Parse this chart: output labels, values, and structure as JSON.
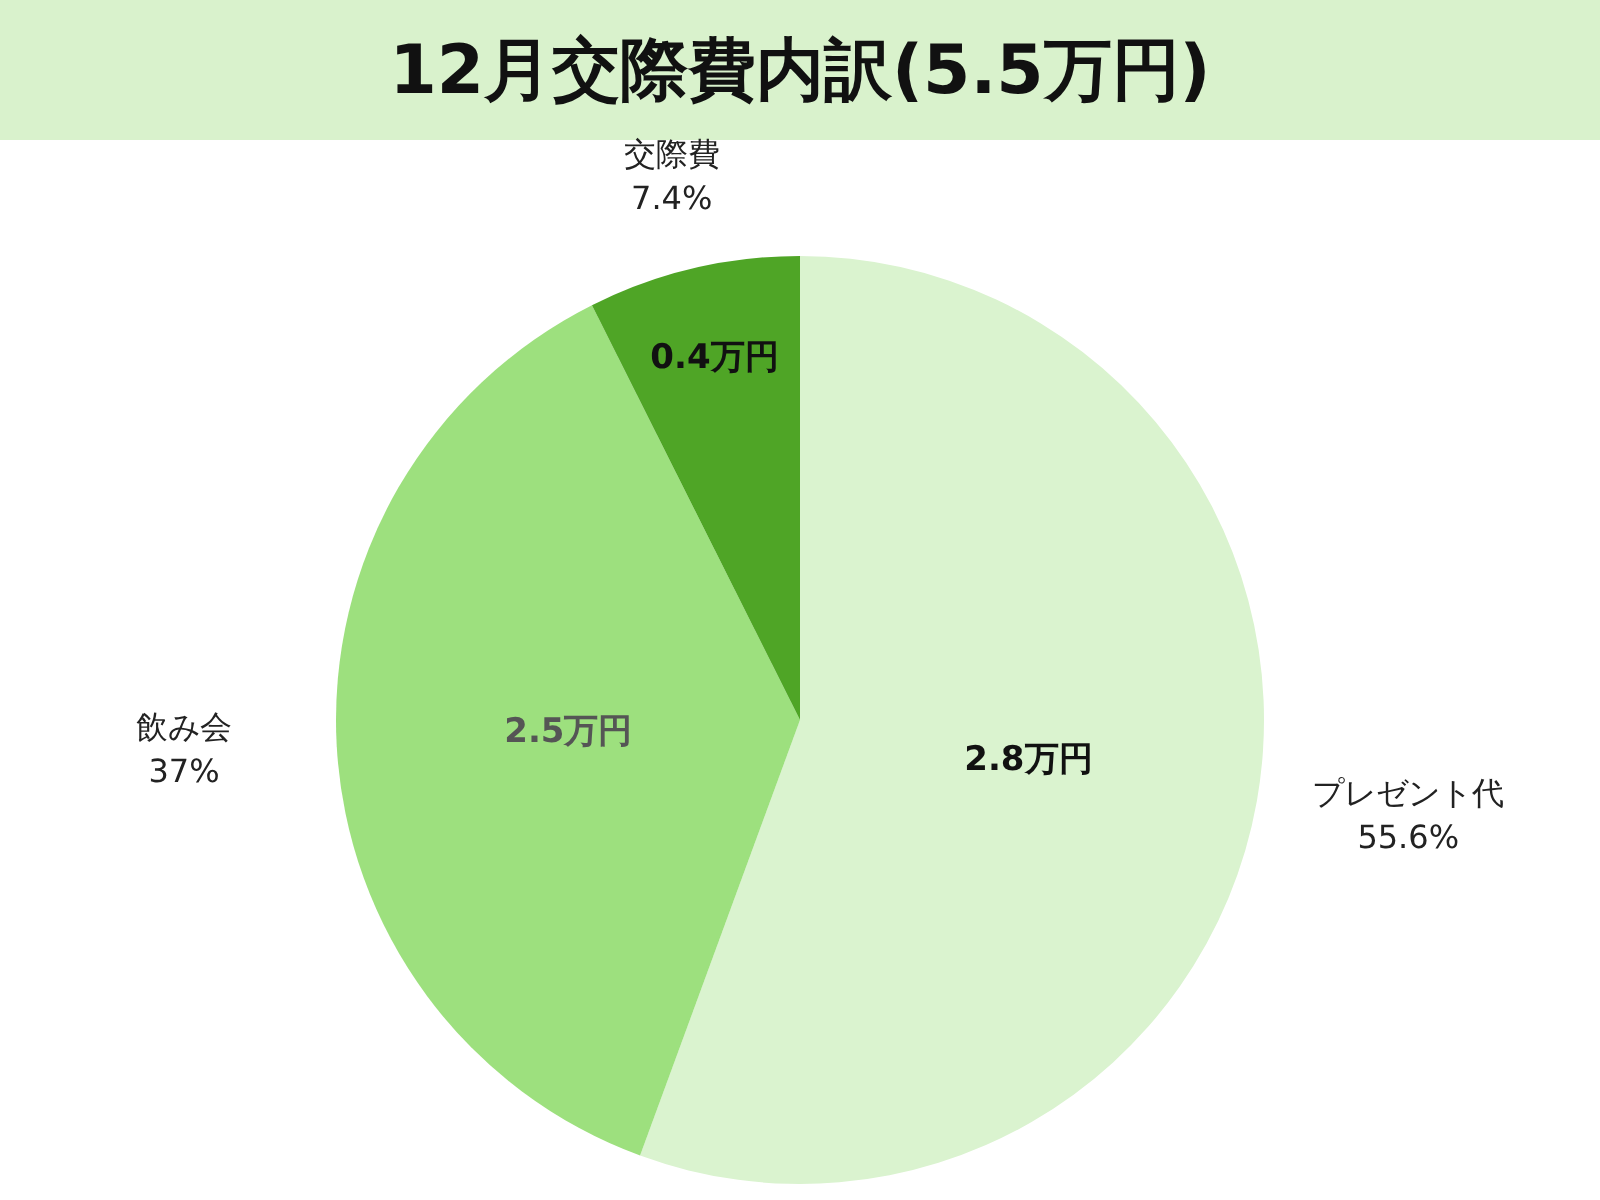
{
  "chart_data": {
    "type": "pie",
    "title": "12月交際費内訳(5.5万円)",
    "categories": [
      "プレゼント代",
      "飲み会",
      "交際費"
    ],
    "values": [
      55.6,
      37,
      7.4
    ],
    "colors": [
      "#daf3cf",
      "#9de07e",
      "#4fa526"
    ],
    "value_labels": [
      "55.6%",
      "37%",
      "7.4%"
    ],
    "annotations": [
      "2.8万円",
      "2.5万円",
      "0.4万円"
    ],
    "legend": false
  }
}
